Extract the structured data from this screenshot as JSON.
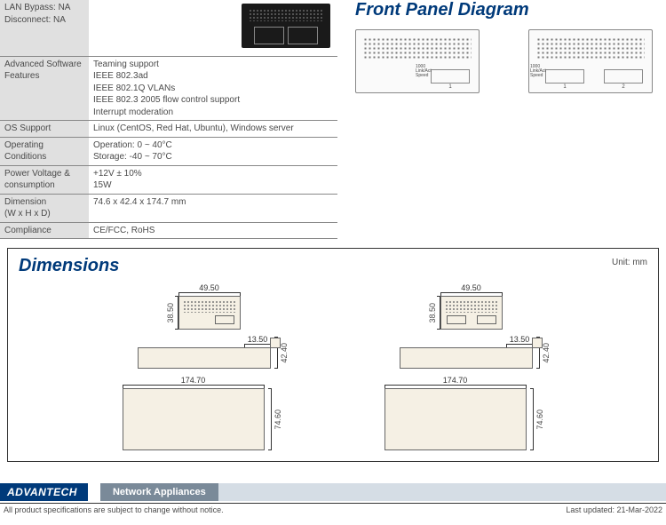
{
  "spec_top": {
    "lan_bypass": "LAN Bypass: NA",
    "disconnect": "Disconnect: NA"
  },
  "rows": [
    {
      "label": "Advanced Software Features",
      "value": "Teaming support\nIEEE 802.3ad\nIEEE 802.1Q VLANs\nIEEE 802.3 2005 flow control support\nInterrupt moderation"
    },
    {
      "label": "OS Support",
      "value": "Linux (CentOS, Red Hat, Ubuntu), Windows server"
    },
    {
      "label": "Operating Conditions",
      "value": "Operation: 0 ~ 40°C\nStorage: -40 ~ 70°C"
    },
    {
      "label": "Power Voltage & consumption",
      "value": "+12V ± 10%\n15W"
    },
    {
      "label": "Dimension\n(W x H x D)",
      "value": "74.6 x 42.4 x 174.7 mm"
    },
    {
      "label": "Compliance",
      "value": "CE/FCC, RoHS"
    }
  ],
  "panel_title": "Front Panel Diagram",
  "panel_labels": {
    "p1000": "1000\nLink/Act\nSpeed",
    "n1": "1",
    "n2": "2"
  },
  "dim_title": "Dimensions",
  "dim_unit": "Unit: mm",
  "dims": {
    "w49_50": "49.50",
    "h38_50": "38.50",
    "w13_50": "13.50",
    "h42_40": "42.40",
    "w174_70": "174.70",
    "h74_60": "74.60"
  },
  "footer": {
    "brand": "ADVANTECH",
    "category": "Network Appliances",
    "disclaimer": "All product specifications are subject to change without notice.",
    "updated": "Last updated: 21-Mar-2022"
  }
}
